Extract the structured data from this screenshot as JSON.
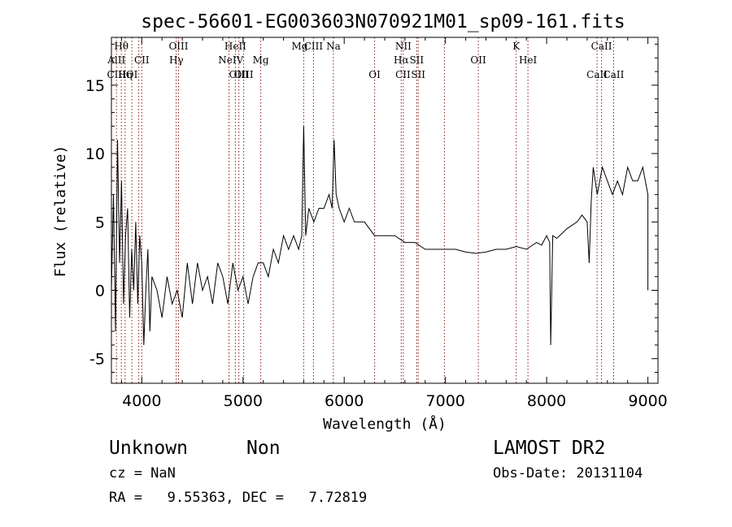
{
  "chart_data": {
    "type": "line",
    "title": "spec-56601-EG003603N070921M01_sp09-161.fits",
    "xlabel": "Wavelength (Å)",
    "ylabel": "Flux (relative)",
    "xlim": [
      3700,
      9100
    ],
    "ylim": [
      -6.8,
      18.5
    ],
    "xticks": [
      4000,
      5000,
      6000,
      7000,
      8000,
      9000
    ],
    "yticks": [
      -5,
      0,
      5,
      10,
      15
    ],
    "grid": false,
    "series": [
      {
        "x": [
          3700,
          3720,
          3740,
          3760,
          3780,
          3800,
          3820,
          3840,
          3860,
          3880,
          3900,
          3920,
          3940,
          3960,
          3980,
          4000,
          4020,
          4040,
          4060,
          4080,
          4100,
          4150,
          4200,
          4250,
          4300,
          4350,
          4400,
          4450,
          4500,
          4550,
          4600,
          4650,
          4700,
          4750,
          4800,
          4850,
          4900,
          4950,
          5000,
          5050,
          5100,
          5150,
          5200,
          5250,
          5300,
          5350,
          5400,
          5450,
          5500,
          5550,
          5580,
          5600,
          5620,
          5650,
          5700,
          5750,
          5800,
          5850,
          5880,
          5900,
          5920,
          5950,
          6000,
          6050,
          6100,
          6150,
          6200,
          6300,
          6400,
          6500,
          6600,
          6700,
          6800,
          6900,
          7000,
          7100,
          7200,
          7300,
          7400,
          7500,
          7600,
          7700,
          7800,
          7900,
          7950,
          8000,
          8030,
          8040,
          8060,
          8100,
          8200,
          8300,
          8350,
          8400,
          8420,
          8440,
          8460,
          8500,
          8550,
          8600,
          8650,
          8700,
          8750,
          8800,
          8850,
          8900,
          8950,
          9000,
          9000
        ],
        "y": [
          0,
          7,
          -3,
          11,
          2,
          8,
          -1,
          4,
          6,
          -2,
          3,
          0,
          5,
          -1,
          4,
          2,
          -4,
          0,
          3,
          -3,
          1,
          0,
          -2,
          1,
          -1,
          0,
          -2,
          2,
          -1,
          2,
          0,
          1,
          -1,
          2,
          1,
          -1,
          2,
          0,
          1,
          -1,
          1,
          2,
          2,
          1,
          3,
          2,
          4,
          3,
          4,
          3,
          4,
          12,
          4,
          6,
          5,
          6,
          6,
          7,
          6,
          11,
          7,
          6,
          5,
          6,
          5,
          5,
          5,
          4,
          4,
          4,
          3.5,
          3.5,
          3,
          3,
          3,
          3,
          2.8,
          2.7,
          2.8,
          3,
          3,
          3.2,
          3,
          3.5,
          3.3,
          4,
          3.5,
          -4,
          4,
          3.8,
          4.5,
          5,
          5.5,
          5,
          2,
          6.5,
          9,
          7,
          9,
          8,
          7,
          8,
          7,
          9,
          8,
          8,
          9,
          7,
          0
        ]
      }
    ],
    "lines": [
      {
        "name": "Hθ",
        "wl": 3798,
        "row": 1
      },
      {
        "name": "AlII",
        "wl": 3750,
        "row": 2
      },
      {
        "name": "CII",
        "wl": 4000,
        "row": 2
      },
      {
        "name": "CIII",
        "wl": 3750,
        "row": 3
      },
      {
        "name": "Hη",
        "wl": 3835,
        "row": 3
      },
      {
        "name": "OI",
        "wl": 3902,
        "row": 3
      },
      {
        "name": "OIII",
        "wl": 4363,
        "row": 1
      },
      {
        "name": "Hγ",
        "wl": 4341,
        "row": 2
      },
      {
        "name": "HeII",
        "wl": 4925,
        "row": 1
      },
      {
        "name": "NeIV",
        "wl": 4880,
        "row": 2
      },
      {
        "name": "OIII",
        "wl": 4959,
        "row": 3
      },
      {
        "name": "OIII",
        "wl": 5007,
        "row": 3
      },
      {
        "name": "Mg",
        "wl": 5175,
        "row": 2
      },
      {
        "name": "Mg",
        "wl": 5560,
        "row": 1
      },
      {
        "name": "CIII",
        "wl": 5696,
        "row": 1
      },
      {
        "name": "Na",
        "wl": 5893,
        "row": 1
      },
      {
        "name": "NII",
        "wl": 6584,
        "row": 1
      },
      {
        "name": "Hα",
        "wl": 6563,
        "row": 2
      },
      {
        "name": "SII",
        "wl": 6716,
        "row": 2
      },
      {
        "name": "OI",
        "wl": 6300,
        "row": 3
      },
      {
        "name": "SII",
        "wl": 6731,
        "row": 3
      },
      {
        "name": "CII",
        "wl": 6580,
        "row": 3
      },
      {
        "name": "OII",
        "wl": 7325,
        "row": 2
      },
      {
        "name": "K",
        "wl": 7699,
        "row": 1
      },
      {
        "name": "HeI",
        "wl": 7815,
        "row": 2
      },
      {
        "name": "CaII",
        "wl": 8542,
        "row": 1
      },
      {
        "name": "CaII",
        "wl": 8498,
        "row": 3
      },
      {
        "name": "CaII",
        "wl": 8662,
        "row": 3
      }
    ],
    "markers": [
      3750,
      3798,
      3835,
      3902,
      3970,
      4000,
      4340,
      4363,
      4861,
      4925,
      4959,
      5007,
      5175,
      5600,
      5696,
      5893,
      6300,
      6563,
      6584,
      6716,
      6731,
      6990,
      7325,
      7699,
      7815,
      8498,
      8542,
      8662
    ]
  },
  "info": {
    "class_label": "Unknown",
    "subclass_label": "Non",
    "survey": "LAMOST DR2",
    "cz": "cz = NaN",
    "obs_date": "Obs-Date: 20131104",
    "coords": "RA =   9.55363, DEC =   7.72819"
  }
}
